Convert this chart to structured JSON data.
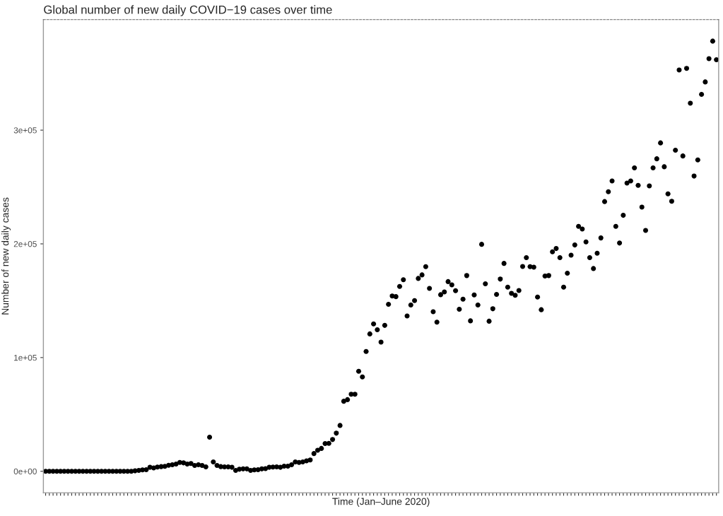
{
  "chart_data": {
    "type": "scatter",
    "title": "Global number of new daily COVID−19 cases over time",
    "xlabel": "Time (Jan–June 2020)",
    "ylabel": "Number of new daily cases",
    "categories": [
      null,
      null,
      null,
      null,
      null,
      null,
      null,
      null,
      null,
      null,
      null,
      null,
      null,
      null,
      null,
      null,
      null,
      null,
      null,
      null,
      null,
      null,
      null,
      null,
      null,
      null,
      null,
      null,
      null,
      null,
      null,
      null,
      null,
      null,
      null,
      null,
      null,
      null,
      null,
      null,
      null,
      null,
      null,
      null,
      null,
      null,
      null,
      null,
      null,
      null,
      null,
      null,
      null,
      null,
      null,
      null,
      null,
      null,
      null,
      null,
      null,
      null,
      null,
      null,
      null,
      null,
      null,
      null,
      null,
      null,
      null,
      null,
      null,
      null,
      null,
      null,
      null,
      null,
      null,
      null,
      null,
      null,
      null,
      null,
      null,
      null,
      null,
      null,
      null,
      null,
      null,
      null,
      null,
      null,
      null,
      null,
      null,
      null,
      null,
      null,
      null,
      null,
      null,
      null,
      null,
      null,
      null,
      null,
      null,
      null,
      null,
      null,
      null,
      null,
      null,
      null,
      null,
      null,
      null,
      null,
      null,
      null,
      null,
      null,
      null,
      null,
      null,
      null,
      null,
      null,
      null,
      null,
      null,
      null,
      null,
      null,
      null,
      null,
      null,
      null,
      null,
      null,
      null,
      null,
      null,
      null,
      null,
      null,
      null,
      null,
      null,
      null,
      null,
      null,
      null,
      null,
      null,
      null,
      null,
      null,
      null,
      null,
      null,
      null,
      null,
      null,
      null,
      null,
      null,
      null,
      null,
      null,
      null,
      null,
      null,
      null,
      null,
      null,
      null,
      null,
      null
    ],
    "series": [
      {
        "color": "#000000",
        "values": [
          0,
          0,
          0,
          0,
          0,
          0,
          0,
          0,
          0,
          0,
          0,
          0,
          0,
          0,
          0,
          0,
          0,
          0,
          0,
          0,
          0,
          0,
          0,
          0,
          400,
          800,
          1200,
          1400,
          3500,
          2900,
          3700,
          4100,
          4300,
          5300,
          5700,
          6400,
          7800,
          7400,
          6400,
          6800,
          5100,
          5700,
          5100,
          3900,
          30000,
          8200,
          5100,
          4100,
          3900,
          3900,
          3500,
          800,
          1800,
          2100,
          2100,
          800,
          1200,
          1400,
          2100,
          2300,
          3500,
          3700,
          3900,
          3500,
          4500,
          4500,
          5700,
          8200,
          7800,
          8200,
          9200,
          9900,
          15600,
          18500,
          20100,
          24400,
          24600,
          27900,
          33500,
          40300,
          61600,
          63000,
          67800,
          67800,
          87900,
          83000,
          105400,
          120800,
          129600,
          124500,
          113600,
          128300,
          146800,
          154200,
          153600,
          162500,
          168400,
          136600,
          146200,
          150100,
          169600,
          172700,
          179900,
          160800,
          140300,
          131200,
          155300,
          157700,
          166800,
          163900,
          158800,
          142500,
          151400,
          172100,
          132300,
          155100,
          146200,
          199600,
          164900,
          132000,
          142900,
          155500,
          169000,
          182800,
          161900,
          156500,
          154800,
          159000,
          180100,
          187900,
          179900,
          179500,
          153200,
          142100,
          171700,
          172100,
          193000,
          195900,
          187900,
          161900,
          174200,
          190000,
          199000,
          215400,
          213000,
          201700,
          187900,
          178300,
          191800,
          205200,
          237200,
          245800,
          255300,
          215400,
          200700,
          225100,
          253400,
          255300,
          266800,
          251400,
          232300,
          211800,
          251000,
          266800,
          274800,
          288800,
          267800,
          244000,
          237400,
          282400,
          352900,
          277300,
          354300,
          323700,
          259600,
          273800,
          331500,
          342400,
          362900,
          378300,
          361900
        ]
      }
    ],
    "ylim": [
      -18900,
      397200
    ],
    "yticks": [
      {
        "value": 0,
        "label": "0e+00"
      },
      {
        "value": 100000,
        "label": "1e+05"
      },
      {
        "value": 200000,
        "label": "2e+05"
      },
      {
        "value": 300000,
        "label": "3e+05"
      }
    ],
    "marker": "circle",
    "grid": false,
    "legend": false
  }
}
